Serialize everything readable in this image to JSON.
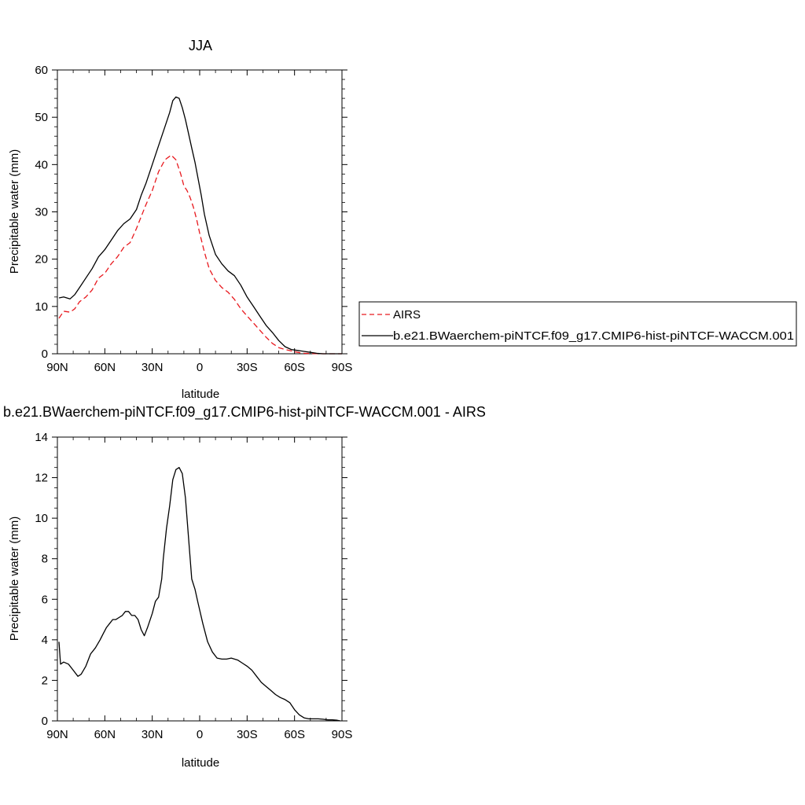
{
  "chart_data": [
    {
      "type": "line",
      "title": "JJA",
      "xlabel": "latitude",
      "ylabel": "Precipitable water (mm)",
      "xlim": [
        90,
        -90
      ],
      "ylim": [
        0,
        60
      ],
      "x_ticks": [
        90,
        60,
        30,
        0,
        -30,
        -60,
        -90
      ],
      "x_tick_labels": [
        "90N",
        "60N",
        "30N",
        "0",
        "30S",
        "60S",
        "90S"
      ],
      "y_ticks": [
        0,
        10,
        20,
        30,
        40,
        50,
        60
      ],
      "y_tick_labels": [
        "0",
        "10",
        "20",
        "30",
        "40",
        "50",
        "60"
      ],
      "legend": {
        "position": "right",
        "entries": [
          {
            "label": "AIRS",
            "color": "#e8191e",
            "style": "dashed"
          },
          {
            "label": "b.e21.BWaerchem-piNTCF.f09_g17.CMIP6-hist-piNTCF-WACCM.001",
            "color": "#000000",
            "style": "solid"
          }
        ]
      },
      "series": [
        {
          "name": "AIRS",
          "color": "#e8191e",
          "style": "dashed",
          "x": [
            89,
            86,
            82,
            79,
            76,
            72,
            68,
            64,
            60,
            56,
            52,
            48,
            44,
            40,
            37,
            34,
            30,
            26,
            22,
            18,
            15,
            12,
            10,
            8,
            6,
            4,
            2,
            0,
            -3,
            -6,
            -10,
            -14,
            -18,
            -22,
            -26,
            -30,
            -34,
            -38,
            -42,
            -46,
            -50,
            -54,
            -58,
            -62,
            -66,
            -70,
            -74,
            -78,
            -82,
            -86,
            -90
          ],
          "y": [
            7.5,
            9.0,
            8.8,
            9.5,
            11.0,
            12.0,
            13.5,
            16.0,
            17.0,
            19.0,
            20.5,
            22.5,
            23.5,
            26.5,
            29.0,
            31.5,
            34.5,
            38.5,
            41.0,
            42.0,
            41.0,
            38.0,
            35.5,
            34.5,
            33.0,
            31.0,
            28.5,
            25.5,
            21.5,
            18.0,
            15.5,
            14.0,
            13.0,
            11.5,
            9.5,
            8.0,
            6.5,
            5.0,
            3.5,
            2.2,
            1.3,
            0.9,
            0.6,
            0.3,
            0.1,
            0.05,
            0.02,
            0.0,
            0.0,
            0.0,
            0.0
          ]
        },
        {
          "name": "b.e21.BWaerchem-piNTCF.f09_g17.CMIP6-hist-piNTCF-WACCM.001",
          "color": "#000000",
          "style": "solid",
          "x": [
            89,
            86,
            82,
            79,
            76,
            72,
            68,
            64,
            60,
            56,
            52,
            48,
            44,
            40,
            37,
            34,
            30,
            26,
            22,
            19,
            17,
            15,
            13,
            11,
            9,
            7,
            5,
            3,
            1,
            -1,
            -3,
            -6,
            -10,
            -14,
            -18,
            -22,
            -26,
            -30,
            -34,
            -38,
            -42,
            -46,
            -50,
            -54,
            -58,
            -62,
            -66,
            -70,
            -74,
            -78,
            -82,
            -86,
            -90
          ],
          "y": [
            11.8,
            12.0,
            11.6,
            12.5,
            14.0,
            16.0,
            18.0,
            20.5,
            22.0,
            24.0,
            26.0,
            27.5,
            28.5,
            30.5,
            33.5,
            36.0,
            40.0,
            44.0,
            48.0,
            51.0,
            53.5,
            54.3,
            54.0,
            52.0,
            49.5,
            46.5,
            43.5,
            40.5,
            37.0,
            33.5,
            29.5,
            25.0,
            21.0,
            19.0,
            17.5,
            16.5,
            14.5,
            12.0,
            10.0,
            8.0,
            6.0,
            4.5,
            2.8,
            1.5,
            0.9,
            0.7,
            0.5,
            0.3,
            0.1,
            0.0,
            0.0,
            0.0,
            0.0
          ]
        }
      ]
    },
    {
      "type": "line",
      "title": "b.e21.BWaerchem-piNTCF.f09_g17.CMIP6-hist-piNTCF-WACCM.001 - AIRS",
      "xlabel": "latitude",
      "ylabel": "Precipitable water (mm)",
      "xlim": [
        90,
        -90
      ],
      "ylim": [
        0,
        14
      ],
      "x_ticks": [
        90,
        60,
        30,
        0,
        -30,
        -60,
        -90
      ],
      "x_tick_labels": [
        "90N",
        "60N",
        "30N",
        "0",
        "30S",
        "60S",
        "90S"
      ],
      "y_ticks": [
        0,
        2,
        4,
        6,
        8,
        10,
        12,
        14
      ],
      "y_tick_labels": [
        "0",
        "2",
        "4",
        "6",
        "8",
        "10",
        "12",
        "14"
      ],
      "series": [
        {
          "color": "#000000",
          "style": "solid",
          "x": [
            89,
            88,
            86,
            83,
            80,
            77,
            75,
            72,
            69,
            66,
            63,
            61,
            59,
            57,
            55,
            53,
            51,
            49,
            47,
            45,
            43,
            41,
            39,
            37,
            35,
            33,
            30,
            28,
            26,
            24,
            23,
            21,
            19,
            17,
            15,
            13,
            11,
            9,
            7,
            5,
            3,
            1,
            -2,
            -5,
            -8,
            -11,
            -14,
            -17,
            -20,
            -24,
            -27,
            -30,
            -33,
            -36,
            -39,
            -42,
            -45,
            -48,
            -51,
            -54,
            -57,
            -60,
            -63,
            -66,
            -69,
            -72,
            -75,
            -78,
            -81,
            -84,
            -87,
            -89
          ],
          "y": [
            3.9,
            2.8,
            2.9,
            2.8,
            2.5,
            2.2,
            2.3,
            2.7,
            3.3,
            3.6,
            4.0,
            4.3,
            4.6,
            4.8,
            5.0,
            5.0,
            5.1,
            5.2,
            5.4,
            5.4,
            5.2,
            5.2,
            5.0,
            4.5,
            4.2,
            4.6,
            5.3,
            5.9,
            6.1,
            7.0,
            8.0,
            9.5,
            10.6,
            11.9,
            12.4,
            12.5,
            12.2,
            11.0,
            9.0,
            7.0,
            6.5,
            5.8,
            4.8,
            3.9,
            3.4,
            3.1,
            3.05,
            3.05,
            3.1,
            3.0,
            2.85,
            2.7,
            2.5,
            2.2,
            1.9,
            1.7,
            1.5,
            1.3,
            1.15,
            1.05,
            0.9,
            0.55,
            0.3,
            0.15,
            0.1,
            0.1,
            0.1,
            0.08,
            0.05,
            0.05,
            0.03,
            0.0
          ]
        }
      ]
    }
  ]
}
